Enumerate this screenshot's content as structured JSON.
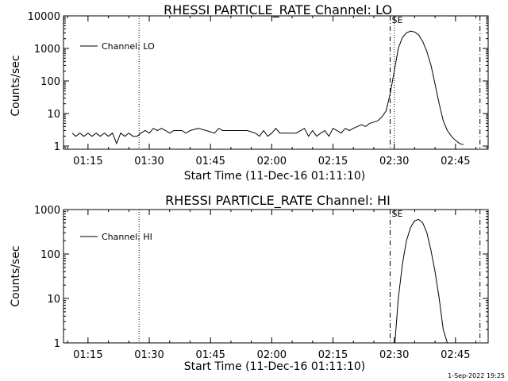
{
  "footer": "1-Sep-2022 19:25",
  "chart_data": [
    {
      "type": "line",
      "title": "RHESSI PARTICLE_RATE Channel: LO",
      "xlabel": "Start Time (11-Dec-16 01:11:10)",
      "ylabel": "Counts/sec",
      "y_scale": "log",
      "xlim": [
        "01:09",
        "02:53"
      ],
      "ylim": [
        0.8,
        10000
      ],
      "x_ticks": [
        "01:15",
        "01:30",
        "01:45",
        "02:00",
        "02:15",
        "02:30",
        "02:45"
      ],
      "y_ticks": [
        "1",
        "10",
        "100",
        "1000",
        "10000"
      ],
      "legend": {
        "position": "top-left",
        "entries": [
          "Channel: LO"
        ]
      },
      "markers": [
        {
          "time": "01:27:30",
          "style": "dotted"
        },
        {
          "time": "02:29:00",
          "style": "dash-dot",
          "label": "SE"
        },
        {
          "time": "02:30:00",
          "style": "dotted"
        },
        {
          "time": "02:51:00",
          "style": "dash-dot"
        }
      ],
      "series": [
        {
          "x": [
            "01:11:10",
            "01:12",
            "01:13",
            "01:14",
            "01:15",
            "01:16",
            "01:17",
            "01:18",
            "01:19",
            "01:20",
            "01:21",
            "01:22",
            "01:23",
            "01:24",
            "01:25",
            "01:26",
            "01:27",
            "01:28",
            "01:29",
            "01:30",
            "01:31",
            "01:32",
            "01:33",
            "01:34",
            "01:35",
            "01:36",
            "01:37",
            "01:38",
            "01:39",
            "01:40",
            "01:42",
            "01:44",
            "01:46",
            "01:47",
            "01:48",
            "01:50",
            "01:52",
            "01:54",
            "01:56",
            "01:57",
            "01:58",
            "01:59",
            "02:00",
            "02:01",
            "02:02",
            "02:04",
            "02:06",
            "02:08",
            "02:09",
            "02:10",
            "02:11",
            "02:12",
            "02:13",
            "02:14",
            "02:15",
            "02:16",
            "02:17",
            "02:18",
            "02:19",
            "02:20",
            "02:21",
            "02:22",
            "02:23",
            "02:24",
            "02:25",
            "02:26",
            "02:27",
            "02:28",
            "02:29",
            "02:30",
            "02:31",
            "02:32",
            "02:33",
            "02:34",
            "02:35",
            "02:36",
            "02:37",
            "02:38",
            "02:39",
            "02:40",
            "02:41",
            "02:42",
            "02:43",
            "02:44",
            "02:45",
            "02:46",
            "02:47"
          ],
          "y": [
            2.5,
            2,
            2.5,
            2,
            2.5,
            2,
            2.5,
            2,
            2.5,
            2,
            2.5,
            1.2,
            2.5,
            2,
            2.5,
            2,
            2,
            2.5,
            3,
            2.5,
            3.5,
            3,
            3.5,
            3,
            2.5,
            3,
            3,
            3,
            2.5,
            3,
            3.5,
            3,
            2.5,
            3.5,
            3,
            3,
            3,
            3,
            2.5,
            2,
            3,
            2,
            2.5,
            3.5,
            2.5,
            2.5,
            2.5,
            3.5,
            2,
            3,
            2,
            2.5,
            3,
            2,
            3.5,
            3,
            2.5,
            3.5,
            3,
            3.5,
            4,
            4.5,
            4,
            5,
            5.5,
            6,
            8,
            12,
            40,
            200,
            1000,
            2200,
            3000,
            3400,
            3200,
            2600,
            1600,
            800,
            300,
            80,
            20,
            6,
            3,
            2,
            1.5,
            1.2,
            1.1
          ]
        }
      ]
    },
    {
      "type": "line",
      "title": "RHESSI PARTICLE_RATE Channel: HI",
      "xlabel": "Start Time (11-Dec-16 01:11:10)",
      "ylabel": "Counts/sec",
      "y_scale": "log",
      "xlim": [
        "01:09",
        "02:53"
      ],
      "ylim": [
        1,
        1000
      ],
      "x_ticks": [
        "01:15",
        "01:30",
        "01:45",
        "02:00",
        "02:15",
        "02:30",
        "02:45"
      ],
      "y_ticks": [
        "1",
        "10",
        "100",
        "1000"
      ],
      "legend": {
        "position": "top-left",
        "entries": [
          "Channel: HI"
        ]
      },
      "markers": [
        {
          "time": "01:27:30",
          "style": "dotted"
        },
        {
          "time": "02:29:00",
          "style": "dash-dot",
          "label": "SE"
        },
        {
          "time": "02:51:00",
          "style": "dash-dot"
        }
      ],
      "series": [
        {
          "x": [
            "02:30:10",
            "02:31",
            "02:32",
            "02:33",
            "02:34",
            "02:35",
            "02:36",
            "02:37",
            "02:38",
            "02:39",
            "02:40",
            "02:41",
            "02:42",
            "02:43"
          ],
          "y": [
            1,
            10,
            60,
            200,
            400,
            560,
            600,
            500,
            300,
            120,
            40,
            10,
            2,
            1
          ]
        }
      ]
    }
  ]
}
